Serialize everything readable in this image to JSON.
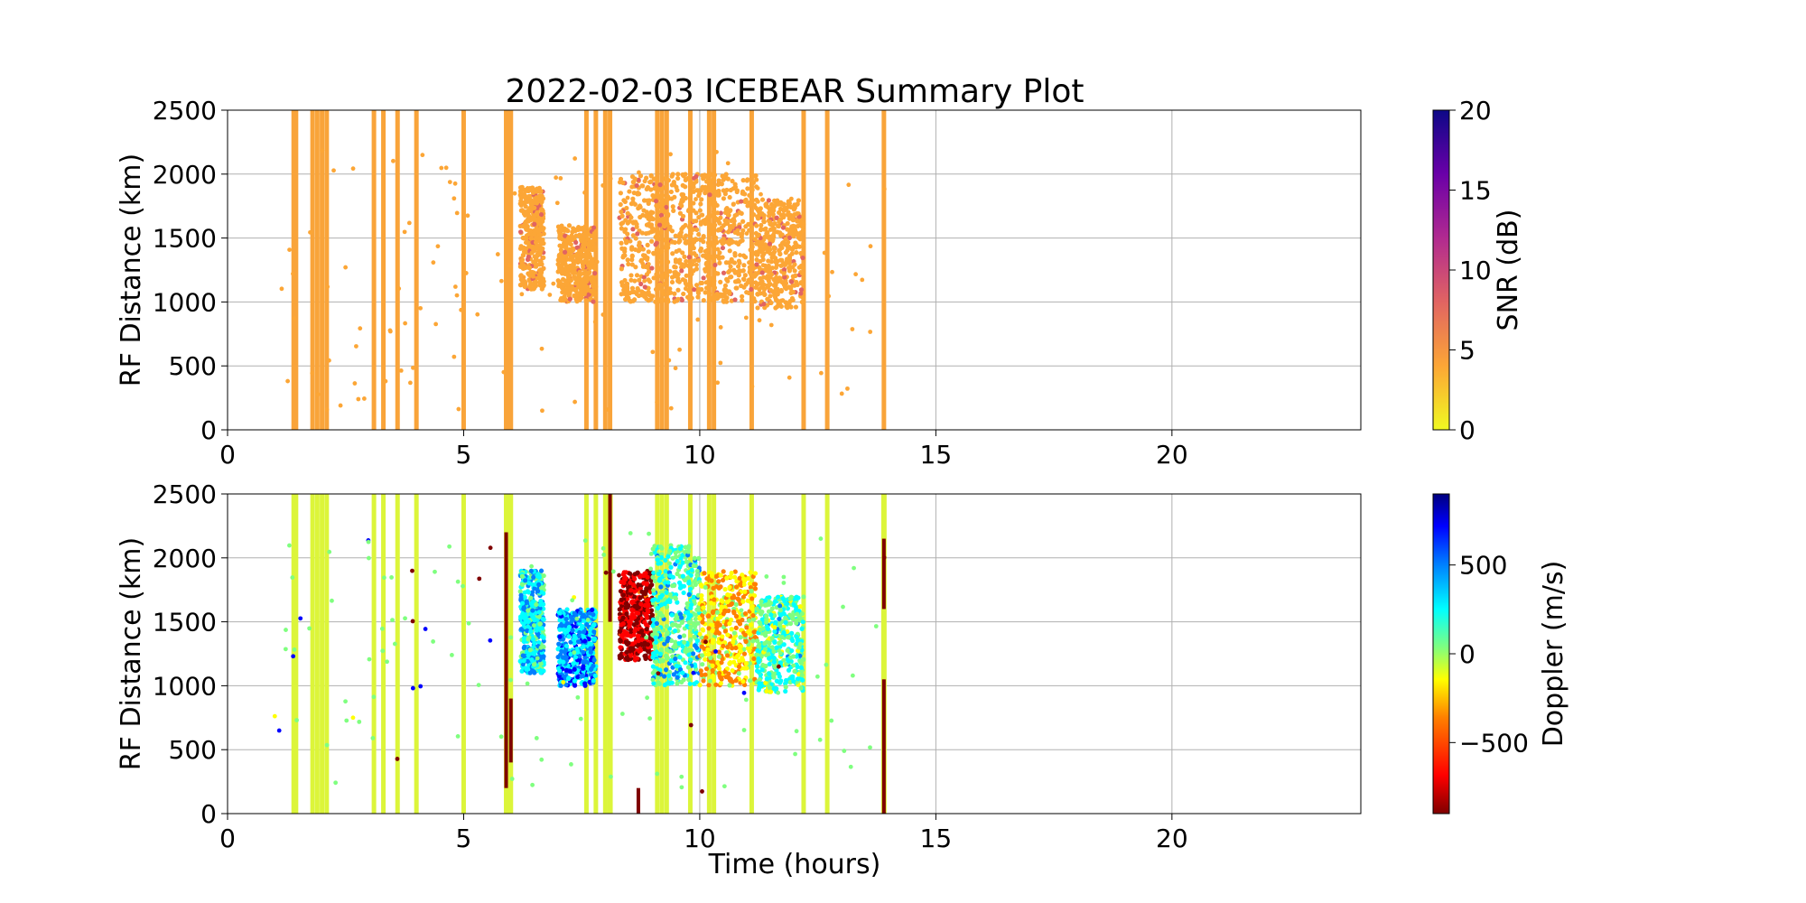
{
  "figure": {
    "title": "2022-02-03 ICEBEAR Summary Plot"
  },
  "chart_data": [
    {
      "type": "scatter",
      "title": "2022-02-03 ICEBEAR Summary Plot",
      "xlabel": "",
      "ylabel": "RF Distance (km)",
      "xlim": [
        0,
        24
      ],
      "ylim": [
        0,
        2500
      ],
      "xticks": [
        0,
        5,
        10,
        15,
        20
      ],
      "yticks": [
        0,
        500,
        1000,
        1500,
        2000,
        2500
      ],
      "grid": true,
      "colorbar": {
        "label": "SNR (dB)",
        "range": [
          0,
          20
        ],
        "ticks": [
          0,
          5,
          10,
          15,
          20
        ],
        "colormap": "plasma_r",
        "colors": [
          "#f0f921",
          "#fca636",
          "#e16462",
          "#b12a90",
          "#6a00a8",
          "#0d0887"
        ]
      },
      "dominant_color": "#f9a43a",
      "vertical_streaks_hours": [
        1.4,
        1.45,
        1.8,
        1.9,
        2.0,
        2.1,
        3.1,
        3.3,
        3.6,
        4.0,
        5.0,
        5.9,
        5.95,
        6.0,
        7.6,
        7.8,
        8.0,
        8.1,
        9.1,
        9.2,
        9.3,
        9.8,
        10.2,
        10.3,
        11.1,
        12.2,
        12.7,
        13.9
      ],
      "clusters": [
        {
          "x": [
            6.2,
            6.7
          ],
          "y": [
            1100,
            1900
          ],
          "value_db": 3
        },
        {
          "x": [
            7.0,
            7.8
          ],
          "y": [
            1000,
            1600
          ],
          "value_db": 3
        },
        {
          "x": [
            8.3,
            9.8
          ],
          "y": [
            1000,
            2000
          ],
          "value_db": 4
        },
        {
          "x": [
            9.8,
            11.2
          ],
          "y": [
            1000,
            2000
          ],
          "value_db": 3
        },
        {
          "x": [
            11.2,
            12.2
          ],
          "y": [
            950,
            1800
          ],
          "value_db": 3
        }
      ]
    },
    {
      "type": "scatter",
      "title": "",
      "xlabel": "Time (hours)",
      "ylabel": "RF Distance (km)",
      "xlim": [
        0,
        24
      ],
      "ylim": [
        0,
        2500
      ],
      "xticks": [
        0,
        5,
        10,
        15,
        20
      ],
      "yticks": [
        0,
        500,
        1000,
        1500,
        2000,
        2500
      ],
      "grid": true,
      "colorbar": {
        "label": "Doppler (m/s)",
        "range": [
          -900,
          900
        ],
        "ticks": [
          -500,
          0,
          500
        ],
        "tick_labels": [
          "−500",
          "0",
          "500"
        ],
        "colormap": "jet_r",
        "colors": [
          "#7f0000",
          "#ff0000",
          "#ff7f00",
          "#ffff00",
          "#7fff7f",
          "#00ffff",
          "#007fff",
          "#0000ff",
          "#00007f"
        ]
      },
      "dominant_color": "#dcf53a",
      "vertical_streaks_hours": [
        1.4,
        1.45,
        1.8,
        1.9,
        2.0,
        2.1,
        3.1,
        3.3,
        3.6,
        4.0,
        5.0,
        5.9,
        5.95,
        6.0,
        7.6,
        7.8,
        8.0,
        8.1,
        9.1,
        9.2,
        9.3,
        9.8,
        10.2,
        10.3,
        11.1,
        12.2,
        12.7,
        13.9
      ],
      "clusters": [
        {
          "x": [
            6.2,
            6.7
          ],
          "y": [
            1100,
            1900
          ],
          "value_ms": 250
        },
        {
          "x": [
            7.0,
            7.8
          ],
          "y": [
            1000,
            1600
          ],
          "value_ms": 400
        },
        {
          "x": [
            8.3,
            9.0
          ],
          "y": [
            1200,
            1900
          ],
          "value_ms": -800
        },
        {
          "x": [
            9.0,
            10.0
          ],
          "y": [
            1000,
            2100
          ],
          "value_ms": 150
        },
        {
          "x": [
            10.0,
            11.2
          ],
          "y": [
            1000,
            1900
          ],
          "value_ms": -300
        },
        {
          "x": [
            11.2,
            12.2
          ],
          "y": [
            950,
            1700
          ],
          "value_ms": 100
        }
      ]
    }
  ]
}
